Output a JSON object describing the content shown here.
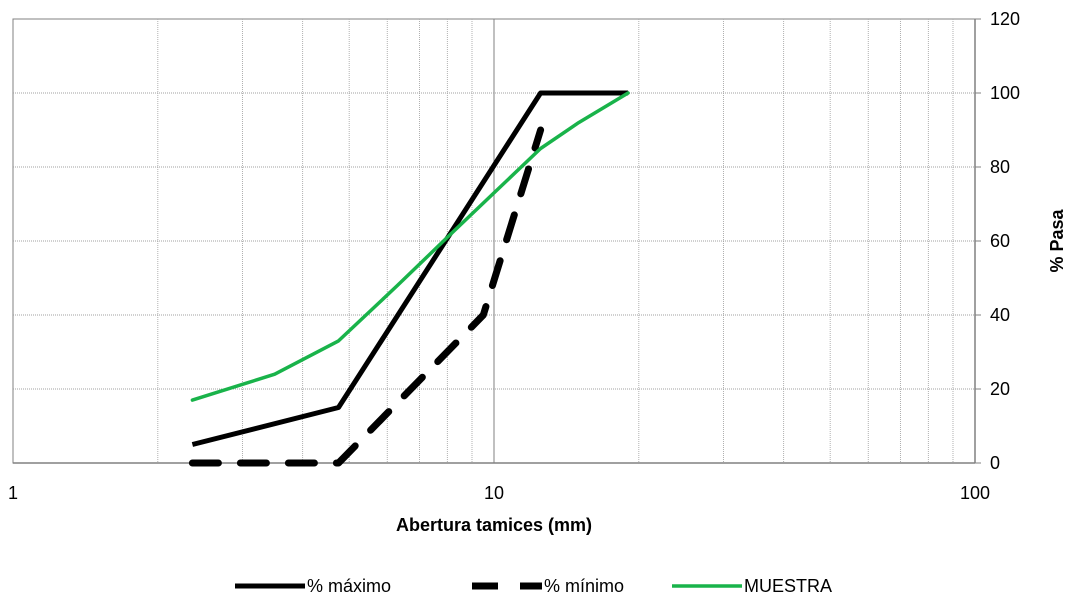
{
  "chart_data": {
    "type": "line",
    "xscale": "log",
    "xlim": [
      1,
      100
    ],
    "ylim": [
      0,
      120
    ],
    "x_ticks": [
      "1",
      "10",
      "100"
    ],
    "y_ticks": [
      "0",
      "20",
      "40",
      "60",
      "80",
      "100",
      "120"
    ],
    "xlabel": "Abertura tamices (mm)",
    "ylabel": "% Pasa",
    "y_axis_side": "right",
    "grid": true,
    "legend_position": "bottom",
    "series": [
      {
        "name": "% máximo",
        "style": "solid",
        "color": "#000000",
        "x": [
          2.36,
          4.75,
          12.5,
          19
        ],
        "y": [
          5,
          15,
          100,
          100
        ]
      },
      {
        "name": "% mínimo",
        "style": "dashed",
        "color": "#000000",
        "x": [
          2.36,
          4.75,
          9.5,
          12.5
        ],
        "y": [
          0,
          0,
          40,
          90
        ]
      },
      {
        "name": "MUESTRA",
        "style": "solid",
        "color": "#19b34a",
        "x": [
          2.36,
          3.5,
          4.75,
          6.3,
          8,
          10,
          12.5,
          15,
          19
        ],
        "y": [
          17,
          24,
          33,
          48,
          61,
          73,
          85,
          92,
          100
        ]
      }
    ]
  }
}
